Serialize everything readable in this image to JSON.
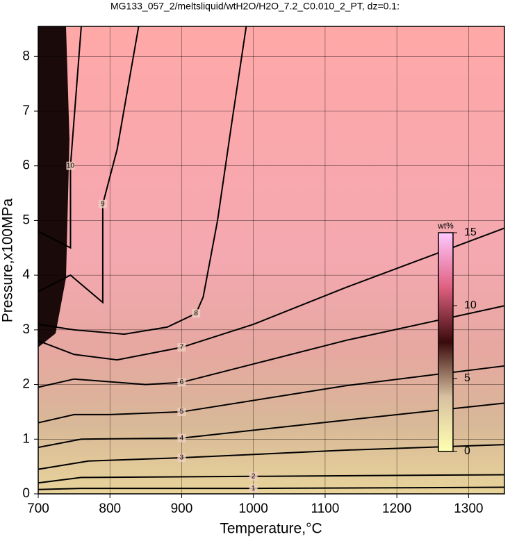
{
  "chart_data": {
    "type": "contour",
    "title": "MG133_057_2/meltsliquid/wtH2O/H2O_7.2_C0.010_2_PT, dz=0.1:",
    "x_label": "Temperature,°C",
    "y_label": "Pressure,x100MPa",
    "xlim": [
      700,
      1350
    ],
    "ylim": [
      0,
      8.55
    ],
    "xticks": [
      700,
      800,
      900,
      1000,
      1100,
      1200,
      1300
    ],
    "yticks": [
      0,
      1,
      2,
      3,
      4,
      5,
      6,
      7,
      8
    ],
    "grid": true,
    "colorbar": {
      "label": "wt%",
      "clim": [
        0,
        15
      ],
      "ticks": [
        0,
        5,
        10,
        15
      ],
      "colormap": [
        "#ffffb0",
        "#d8c0a0",
        "#3a0a0a",
        "#e06080",
        "#ffc8ff"
      ]
    },
    "contours": [
      {
        "level": 1,
        "x": [
          700,
          760,
          1000,
          1350
        ],
        "y": [
          0.08,
          0.1,
          0.1,
          0.12
        ]
      },
      {
        "level": 2,
        "x": [
          700,
          760,
          1000,
          1350
        ],
        "y": [
          0.2,
          0.3,
          0.32,
          0.35
        ]
      },
      {
        "level": 3,
        "x": [
          700,
          770,
          900,
          1130,
          1350
        ],
        "y": [
          0.45,
          0.6,
          0.66,
          0.8,
          0.9
        ]
      },
      {
        "level": 4,
        "x": [
          700,
          760,
          900,
          1130,
          1350
        ],
        "y": [
          0.85,
          1.0,
          1.02,
          1.35,
          1.66
        ]
      },
      {
        "level": 5,
        "x": [
          700,
          750,
          800,
          900,
          1130,
          1350
        ],
        "y": [
          1.3,
          1.45,
          1.45,
          1.5,
          1.98,
          2.34
        ]
      },
      {
        "level": 6,
        "x": [
          700,
          750,
          850,
          900,
          1130,
          1350
        ],
        "y": [
          1.95,
          2.1,
          2.0,
          2.04,
          2.81,
          3.44
        ]
      },
      {
        "level": 7,
        "x": [
          700,
          750,
          810,
          900,
          1000,
          1130,
          1350
        ],
        "y": [
          2.8,
          2.55,
          2.45,
          2.68,
          3.1,
          3.78,
          4.86
        ]
      },
      {
        "level": 8,
        "x": [
          700,
          750,
          820,
          880,
          920,
          930,
          950,
          970,
          990
        ],
        "y": [
          3.1,
          3.0,
          2.92,
          3.05,
          3.3,
          3.6,
          5.0,
          6.8,
          8.55
        ]
      },
      {
        "level": 9,
        "x": [
          700,
          745,
          790,
          790,
          810,
          840
        ],
        "y": [
          3.7,
          4.0,
          3.5,
          5.3,
          6.3,
          8.55
        ]
      },
      {
        "level": 10,
        "x": [
          700,
          745,
          745,
          760
        ],
        "y": [
          4.8,
          4.5,
          6.0,
          8.55
        ]
      }
    ]
  }
}
